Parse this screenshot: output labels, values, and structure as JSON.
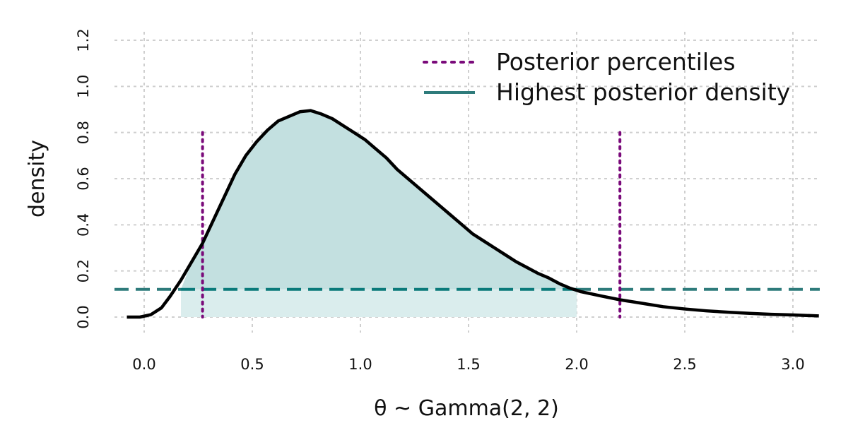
{
  "chart_data": {
    "type": "area",
    "xlabel": "θ ~ Gamma(2, 2)",
    "ylabel": "density",
    "xlim": [
      -0.1,
      3.12
    ],
    "ylim": [
      0.0,
      1.2
    ],
    "x_ticks": [
      0.0,
      0.5,
      1.0,
      1.5,
      2.0,
      2.5,
      3.0
    ],
    "x_tick_labels": [
      "0.0",
      "0.5",
      "1.0",
      "1.5",
      "2.0",
      "2.5",
      "3.0"
    ],
    "y_ticks": [
      0.0,
      0.2,
      0.4,
      0.6,
      0.8,
      1.0,
      1.2
    ],
    "y_tick_labels": [
      "0.0",
      "0.2",
      "0.4",
      "0.6",
      "0.8",
      "1.0",
      "1.2"
    ],
    "grid": true,
    "legend_position": "top-right",
    "density_curve": {
      "x": [
        -0.08,
        -0.02,
        0.03,
        0.08,
        0.12,
        0.17,
        0.22,
        0.27,
        0.32,
        0.37,
        0.42,
        0.47,
        0.52,
        0.57,
        0.62,
        0.67,
        0.72,
        0.77,
        0.82,
        0.87,
        0.92,
        0.97,
        1.02,
        1.07,
        1.12,
        1.17,
        1.22,
        1.27,
        1.32,
        1.37,
        1.42,
        1.47,
        1.52,
        1.57,
        1.62,
        1.67,
        1.72,
        1.77,
        1.82,
        1.87,
        1.92,
        1.97,
        2.02,
        2.07,
        2.12,
        2.2,
        2.3,
        2.4,
        2.5,
        2.6,
        2.7,
        2.8,
        2.9,
        3.0,
        3.12
      ],
      "y": [
        0.0,
        0.0,
        0.01,
        0.04,
        0.09,
        0.16,
        0.24,
        0.32,
        0.42,
        0.52,
        0.62,
        0.7,
        0.76,
        0.81,
        0.85,
        0.87,
        0.89,
        0.895,
        0.88,
        0.86,
        0.83,
        0.8,
        0.77,
        0.73,
        0.69,
        0.64,
        0.6,
        0.56,
        0.52,
        0.48,
        0.44,
        0.4,
        0.36,
        0.33,
        0.3,
        0.27,
        0.24,
        0.215,
        0.19,
        0.17,
        0.145,
        0.125,
        0.11,
        0.1,
        0.09,
        0.075,
        0.06,
        0.045,
        0.035,
        0.027,
        0.021,
        0.016,
        0.012,
        0.009,
        0.005
      ]
    },
    "posterior_percentiles": [
      0.27,
      2.2
    ],
    "hpd_interval": [
      0.17,
      2.0
    ],
    "hpd_density_level": 0.12,
    "series": [
      {
        "name": "Posterior percentiles",
        "color": "#7a0a7a",
        "style": "dotted"
      },
      {
        "name": "Highest posterior density",
        "color": "#2e7b7b",
        "style": "dashed"
      }
    ],
    "colors": {
      "curve": "#000000",
      "hpd_fill": "#c3e0e0",
      "hpd_band_fill": "#daeded",
      "hpd_line": "#2e7b7b",
      "hpd_line_inside": "#0a7a7a",
      "grid": "#cfcfcf"
    }
  }
}
